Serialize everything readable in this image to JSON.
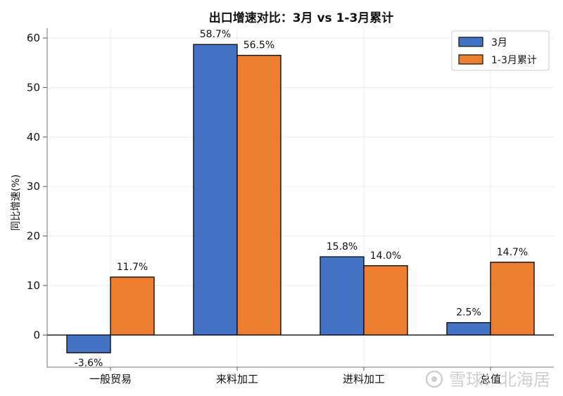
{
  "chart_data": {
    "type": "bar",
    "title": "出口增速对比：3月 vs 1-3月累计",
    "ylabel": "同比增速(%)",
    "categories": [
      "一般贸易",
      "来料加工",
      "进料加工",
      "总值"
    ],
    "series": [
      {
        "name": "3月",
        "values": [
          -3.6,
          58.7,
          15.8,
          2.5
        ],
        "color": "#4472C4",
        "labels": [
          "-3.6%",
          "58.7%",
          "15.8%",
          "2.5%"
        ]
      },
      {
        "name": "1-3月累计",
        "values": [
          11.7,
          56.5,
          14.0,
          14.7
        ],
        "color": "#ED7D31",
        "labels": [
          "11.7%",
          "56.5%",
          "14.0%",
          "14.7%"
        ]
      }
    ],
    "ylim": [
      -6.5,
      62
    ],
    "yticks": [
      0,
      10,
      20,
      30,
      40,
      50,
      60
    ],
    "grid": true,
    "legend": "top-right"
  },
  "watermark": {
    "text": "雪球：北海居",
    "icon": "snowball-logo-icon"
  }
}
